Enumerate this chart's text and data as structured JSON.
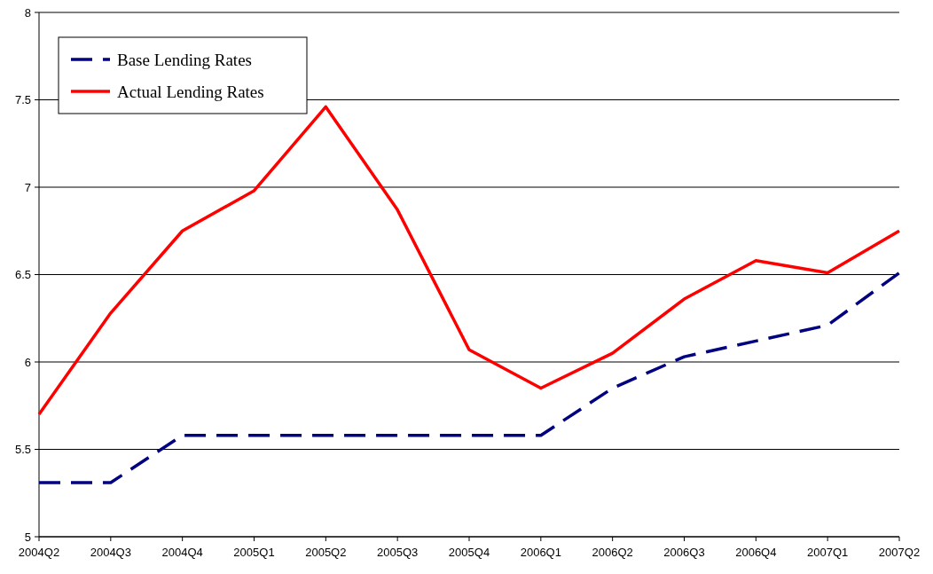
{
  "chart_data": {
    "type": "line",
    "categories": [
      "2004Q2",
      "2004Q3",
      "2004Q4",
      "2005Q1",
      "2005Q2",
      "2005Q3",
      "2005Q4",
      "2006Q1",
      "2006Q2",
      "2006Q3",
      "2006Q4",
      "2007Q1",
      "2007Q2"
    ],
    "series": [
      {
        "name": "Base Lending Rates",
        "color": "#000080",
        "line_style": "dashed",
        "values": [
          5.31,
          5.31,
          5.58,
          5.58,
          5.58,
          5.58,
          5.58,
          5.58,
          5.85,
          6.03,
          6.12,
          6.21,
          6.51
        ]
      },
      {
        "name": "Actual Lending Rates",
        "color": "#ff0000",
        "line_style": "solid",
        "values": [
          5.7,
          6.28,
          6.75,
          6.98,
          7.46,
          6.87,
          6.07,
          5.85,
          6.05,
          6.36,
          6.58,
          6.51,
          6.75
        ]
      }
    ],
    "ylim": [
      5,
      8
    ],
    "yticks": [
      5,
      5.5,
      6,
      6.5,
      7,
      7.5,
      8
    ],
    "grid": "y",
    "legend": "top left",
    "marker": "none"
  }
}
